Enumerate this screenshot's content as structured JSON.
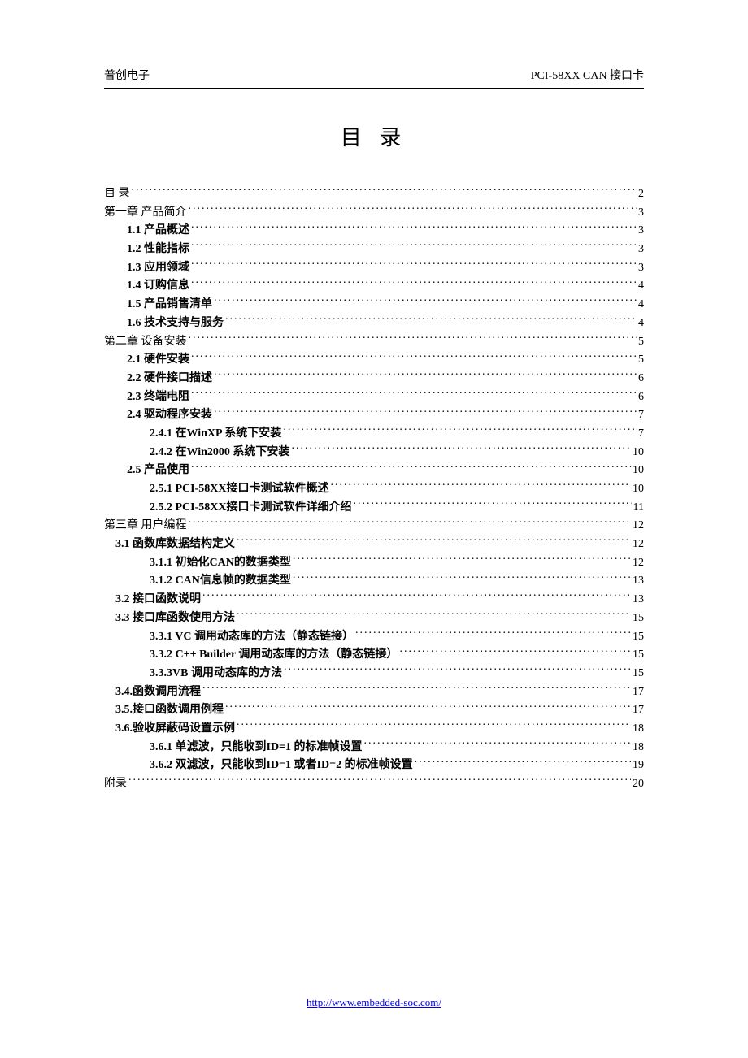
{
  "header": {
    "left": "普创电子",
    "right": "PCI-58XX CAN 接口卡"
  },
  "title": "目 录",
  "footer_url": "http://www.embedded-soc.com/",
  "toc": [
    {
      "level": 0,
      "label": "目 录",
      "page": "2"
    },
    {
      "level": 0,
      "label": "第一章 产品简介",
      "page": "3"
    },
    {
      "level": 1,
      "label": "1.1 产品概述",
      "page": "3"
    },
    {
      "level": 1,
      "label": "1.2 性能指标",
      "page": "3"
    },
    {
      "level": 1,
      "label": "1.3 应用领域",
      "page": "3"
    },
    {
      "level": 1,
      "label": "1.4 订购信息",
      "page": "4"
    },
    {
      "level": 1,
      "label": "1.5 产品销售清单",
      "page": "4"
    },
    {
      "level": 1,
      "label": "1.6 技术支持与服务",
      "page": "4"
    },
    {
      "level": 0,
      "label": "第二章 设备安装",
      "page": "5"
    },
    {
      "level": 1,
      "label": "2.1 硬件安装",
      "page": "5"
    },
    {
      "level": 1,
      "label": "2.2 硬件接口描述",
      "page": "6"
    },
    {
      "level": 1,
      "label": "2.3 终端电阻",
      "page": "6"
    },
    {
      "level": 1,
      "label": "2.4 驱动程序安装",
      "page": "7"
    },
    {
      "level": 2,
      "label": "2.4.1 在WinXP  系统下安装",
      "page": "7"
    },
    {
      "level": 2,
      "label": "2.4.2 在Win2000  系统下安装",
      "page": "10"
    },
    {
      "level": 1,
      "label": "2.5 产品使用",
      "page": "10"
    },
    {
      "level": 2,
      "label": "2.5.1 PCI-58XX接口卡测试软件概述",
      "page": "10"
    },
    {
      "level": 2,
      "label": "2.5.2 PCI-58XX接口卡测试软件详细介绍",
      "page": "11"
    },
    {
      "level": 0,
      "label": "第三章 用户编程",
      "page": "12"
    },
    {
      "level": "1b",
      "label": "3.1 函数库数据结构定义",
      "page": "12"
    },
    {
      "level": 2,
      "label": "3.1.1 初始化CAN的数据类型",
      "page": "12"
    },
    {
      "level": 2,
      "label": "3.1.2 CAN信息帧的数据类型",
      "page": "13"
    },
    {
      "level": "1b",
      "label": "3.2 接口函数说明",
      "page": "13"
    },
    {
      "level": "1b",
      "label": "3.3 接口库函数使用方法",
      "page": "15"
    },
    {
      "level": 2,
      "label": "3.3.1 VC  调用动态库的方法（静态链接）",
      "page": "15"
    },
    {
      "level": 2,
      "label": "3.3.2 C++ Builder  调用动态库的方法（静态链接）",
      "page": "15"
    },
    {
      "level": 2,
      "label": "3.3.3VB 调用动态库的方法",
      "page": "15"
    },
    {
      "level": "1b",
      "label": "3.4.函数调用流程",
      "page": "17"
    },
    {
      "level": "1b",
      "label": "3.5.接口函数调用例程",
      "page": "17"
    },
    {
      "level": "1b",
      "label": "3.6.验收屏蔽码设置示例",
      "page": "18"
    },
    {
      "level": 2,
      "label": "3.6.1 单滤波，只能收到ID=1 的标准帧设置",
      "page": "18"
    },
    {
      "level": 2,
      "label": "3.6.2 双滤波，只能收到ID=1 或者ID=2 的标准帧设置",
      "page": "19"
    },
    {
      "level": 0,
      "label": "附录",
      "page": "20"
    }
  ]
}
